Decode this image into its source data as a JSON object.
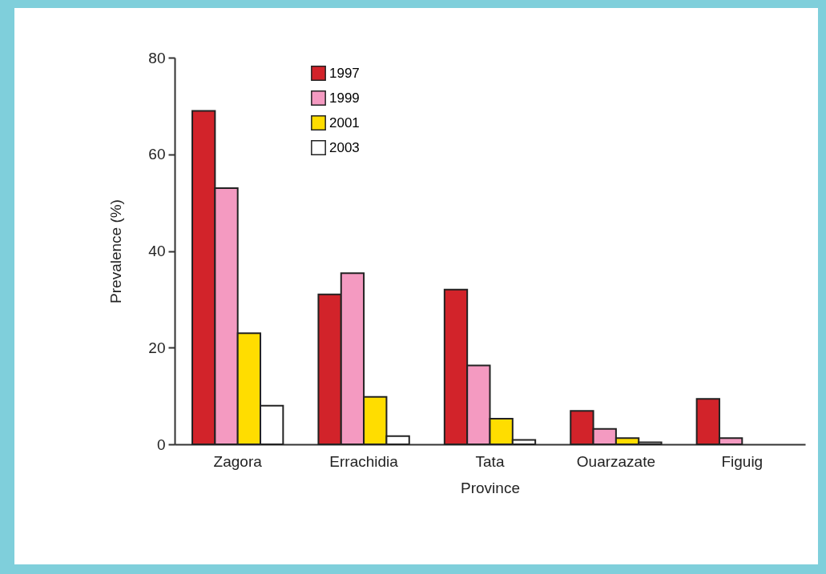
{
  "chart_data": {
    "type": "bar",
    "xlabel": "Province",
    "ylabel": "Prevalence (%)",
    "categories": [
      "Zagora",
      "Errachidia",
      "Tata",
      "Ouarzazate",
      "Figuig"
    ],
    "series": [
      {
        "name": "1997",
        "color": "#d2232a",
        "values": [
          69,
          31,
          32,
          6.9,
          9.4
        ]
      },
      {
        "name": "1999",
        "color": "#f49ac1",
        "values": [
          53,
          35.4,
          16.3,
          3.2,
          1.3
        ]
      },
      {
        "name": "2001",
        "color": "#ffdd00",
        "values": [
          23,
          9.8,
          5.3,
          1.3,
          null
        ]
      },
      {
        "name": "2003",
        "color": "#ffffff",
        "values": [
          8,
          1.7,
          0.9,
          0.4,
          null
        ]
      }
    ],
    "ylim": [
      0,
      80
    ],
    "yticks": [
      0,
      20,
      40,
      60,
      80
    ],
    "grid": false,
    "legend": "top left"
  }
}
